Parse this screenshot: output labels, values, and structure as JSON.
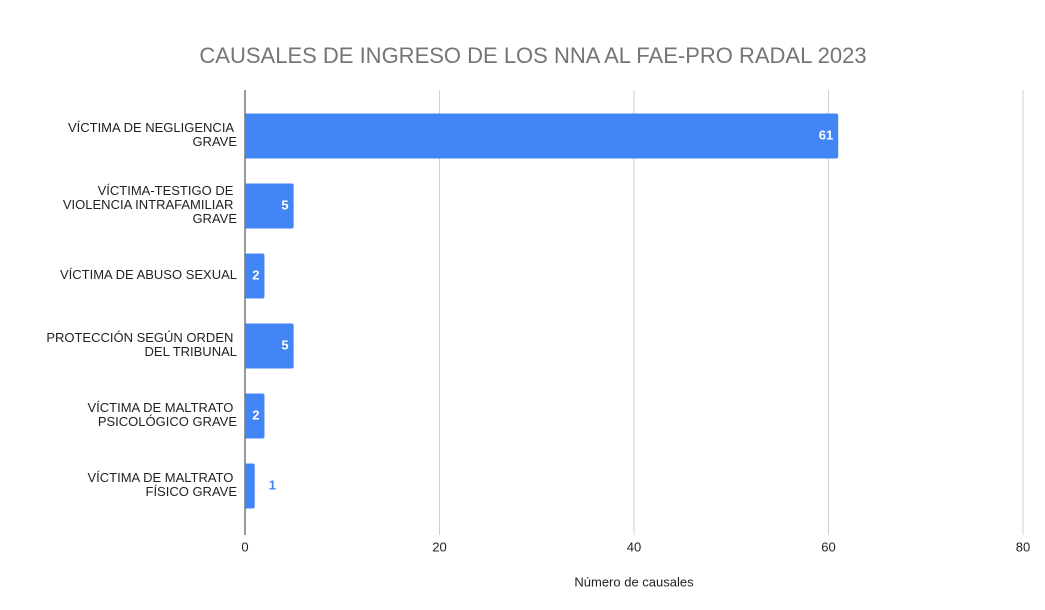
{
  "chart_data": {
    "type": "bar",
    "orientation": "horizontal",
    "title": "CAUSALES DE INGRESO DE LOS NNA AL FAE-PRO RADAL 2023",
    "categories": [
      "VÍCTIMA DE NEGLIGENCIA GRAVE",
      "VÍCTIMA-TESTIGO DE VIOLENCIA INTRAFAMILIAR GRAVE",
      "VÍCTIMA DE ABUSO SEXUAL",
      "PROTECCIÓN SEGÚN ORDEN DEL TRIBUNAL",
      "VÍCTIMA DE MALTRATO PSICOLÓGICO GRAVE",
      "VÍCTIMA DE MALTRATO FÍSICO GRAVE"
    ],
    "values": [
      61,
      5,
      2,
      5,
      2,
      1
    ],
    "color": "#4285f4",
    "xlabel": "Número de causales",
    "xlim": [
      0,
      80
    ],
    "xticks": [
      0,
      20,
      40,
      60,
      80
    ],
    "grid": true
  }
}
